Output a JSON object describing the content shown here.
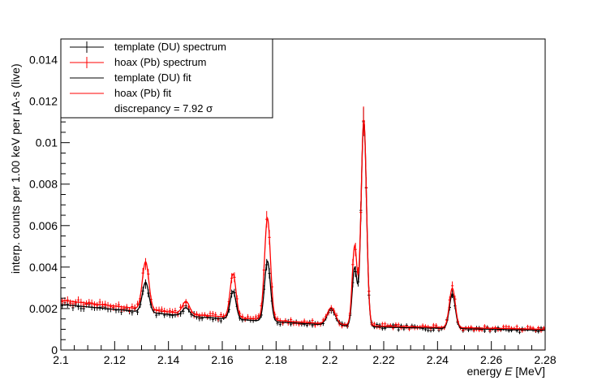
{
  "chart_data": {
    "type": "line",
    "title": "",
    "xlabel_prefix": "energy ",
    "xlabel_var": "E",
    "xlabel_suffix": " [MeV]",
    "ylabel": "interp. counts per 1.00 keV per µA·s (live)",
    "xlim": [
      2.1,
      2.28
    ],
    "ylim": [
      0,
      0.015
    ],
    "x_ticks": [
      2.1,
      2.12,
      2.14,
      2.16,
      2.18,
      2.2,
      2.22,
      2.24,
      2.26,
      2.28
    ],
    "x_tick_labels": [
      "2.1",
      "2.12",
      "2.14",
      "2.16",
      "2.18",
      "2.2",
      "2.22",
      "2.24",
      "2.26",
      "2.28"
    ],
    "y_ticks": [
      0,
      0.002,
      0.004,
      0.006,
      0.008,
      0.01,
      0.012,
      0.014
    ],
    "y_tick_labels": [
      "0",
      "0.002",
      "0.004",
      "0.006",
      "0.008",
      "0.01",
      "0.012",
      "0.014"
    ],
    "grid": false,
    "legend_placement": "top-left",
    "legend": {
      "entries": [
        "template (DU) spectrum",
        "hoax (Pb) spectrum",
        "template (DU) fit",
        "hoax (Pb) fit"
      ],
      "annotation": "discrepancy = 7.92 σ"
    },
    "series": [
      {
        "name": "template (DU) fit",
        "kind": "fit",
        "color": "#000000",
        "baseline": [
          [
            2.1,
            0.0022
          ],
          [
            2.15,
            0.0016
          ],
          [
            2.2,
            0.0012
          ],
          [
            2.22,
            0.0011
          ],
          [
            2.28,
            0.00095
          ]
        ],
        "peaks": [
          {
            "center": 2.1315,
            "height": 0.00145,
            "sigma": 0.0012
          },
          {
            "center": 2.1465,
            "height": 0.0004,
            "sigma": 0.0013
          },
          {
            "center": 2.164,
            "height": 0.00135,
            "sigma": 0.0011
          },
          {
            "center": 2.1768,
            "height": 0.0029,
            "sigma": 0.0011
          },
          {
            "center": 2.2005,
            "height": 0.0008,
            "sigma": 0.0015
          },
          {
            "center": 2.2092,
            "height": 0.0028,
            "sigma": 0.0009
          },
          {
            "center": 2.2126,
            "height": 0.0099,
            "sigma": 0.001
          },
          {
            "center": 2.2455,
            "height": 0.00165,
            "sigma": 0.0011
          }
        ]
      },
      {
        "name": "hoax (Pb) fit",
        "kind": "fit",
        "color": "#ff0000",
        "baseline": [
          [
            2.1,
            0.0024
          ],
          [
            2.15,
            0.0017
          ],
          [
            2.2,
            0.00125
          ],
          [
            2.22,
            0.00115
          ],
          [
            2.28,
            0.001
          ]
        ],
        "peaks": [
          {
            "center": 2.1315,
            "height": 0.0023,
            "sigma": 0.0012
          },
          {
            "center": 2.1465,
            "height": 0.0006,
            "sigma": 0.0013
          },
          {
            "center": 2.164,
            "height": 0.0021,
            "sigma": 0.0011
          },
          {
            "center": 2.1768,
            "height": 0.0049,
            "sigma": 0.0011
          },
          {
            "center": 2.2005,
            "height": 0.0008,
            "sigma": 0.0015
          },
          {
            "center": 2.2092,
            "height": 0.0038,
            "sigma": 0.0009
          },
          {
            "center": 2.2126,
            "height": 0.0099,
            "sigma": 0.001
          },
          {
            "center": 2.2455,
            "height": 0.0019,
            "sigma": 0.0011
          }
        ]
      },
      {
        "name": "template (DU) spectrum",
        "kind": "points",
        "color": "#000000",
        "fit_ref": 0,
        "step": 0.001,
        "relative_error": 0.06,
        "noise_amplitude": 0.00012,
        "seed": 7
      },
      {
        "name": "hoax (Pb) spectrum",
        "kind": "points",
        "color": "#ff0000",
        "fit_ref": 1,
        "step": 0.001,
        "relative_error": 0.06,
        "noise_amplitude": 0.00012,
        "seed": 13
      }
    ]
  }
}
